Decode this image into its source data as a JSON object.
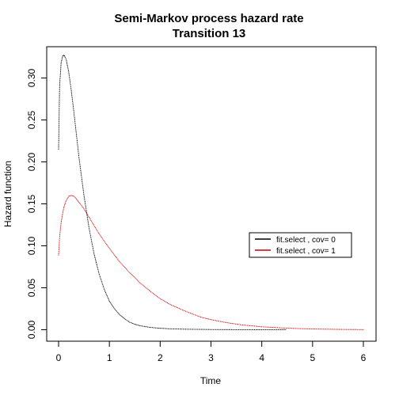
{
  "chart_data": {
    "type": "scatter",
    "title": "Semi-Markov process hazard rate",
    "subtitle": "Transition 13",
    "xlabel": "Time",
    "ylabel": "Hazard function",
    "xlim": [
      0,
      6
    ],
    "ylim": [
      0,
      0.33
    ],
    "x_ticks": [
      "0",
      "1",
      "2",
      "3",
      "4",
      "5",
      "6"
    ],
    "y_ticks": [
      "0.00",
      "0.05",
      "0.10",
      "0.15",
      "0.20",
      "0.25",
      "0.30"
    ],
    "grid": false,
    "legend_position": "right",
    "series": [
      {
        "name": "fit.select , cov= 0",
        "color": "#000000",
        "x": [
          0,
          0.02,
          0.05,
          0.08,
          0.1,
          0.12,
          0.15,
          0.2,
          0.25,
          0.3,
          0.35,
          0.4,
          0.5,
          0.6,
          0.7,
          0.8,
          0.9,
          1.0,
          1.1,
          1.2,
          1.3,
          1.4,
          1.5,
          1.6,
          1.8,
          2.0,
          2.2,
          2.5,
          3.0,
          3.5,
          4.0,
          4.47
        ],
        "y": [
          0.215,
          0.29,
          0.318,
          0.326,
          0.327,
          0.326,
          0.322,
          0.307,
          0.285,
          0.26,
          0.233,
          0.206,
          0.16,
          0.121,
          0.09,
          0.066,
          0.048,
          0.034,
          0.025,
          0.018,
          0.013,
          0.009,
          0.0065,
          0.0048,
          0.0028,
          0.0017,
          0.0011,
          0.0006,
          0.00025,
          0.0001,
          4e-05,
          2e-05
        ]
      },
      {
        "name": "fit.select , cov= 1",
        "color": "#cc0000",
        "x": [
          0,
          0.02,
          0.05,
          0.1,
          0.15,
          0.2,
          0.25,
          0.3,
          0.35,
          0.4,
          0.5,
          0.6,
          0.7,
          0.8,
          1.0,
          1.2,
          1.4,
          1.6,
          1.8,
          2.0,
          2.2,
          2.5,
          2.8,
          3.0,
          3.3,
          3.6,
          4.0,
          4.5,
          5.0,
          5.5,
          6.0
        ],
        "y": [
          0.089,
          0.11,
          0.128,
          0.145,
          0.154,
          0.159,
          0.16,
          0.159,
          0.156,
          0.152,
          0.144,
          0.134,
          0.124,
          0.114,
          0.097,
          0.081,
          0.068,
          0.056,
          0.046,
          0.037,
          0.03,
          0.022,
          0.015,
          0.012,
          0.0085,
          0.0058,
          0.0035,
          0.0018,
          0.0009,
          0.0004,
          0.0002
        ]
      }
    ]
  }
}
